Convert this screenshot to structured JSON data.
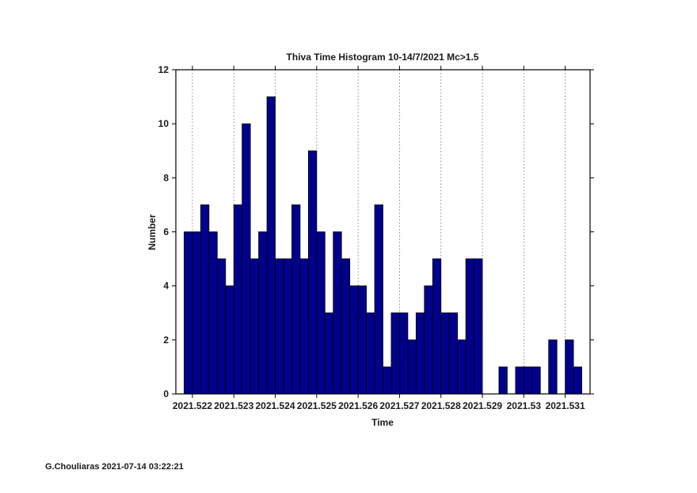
{
  "page": {
    "background": "#ffffff"
  },
  "footer": {
    "credit": "G.Chouliaras 2021-07-14 03:22:21"
  },
  "chart_data": {
    "type": "bar",
    "subtype": "time-histogram",
    "title": "Thiva Time Histogram 10-14/7/2021 Mc>1.5",
    "xlabel": "Time",
    "ylabel": "Number",
    "bar_color": "#00008b",
    "bar_edge_color": "#000000",
    "grid": "vertical-dotted",
    "legend": "none",
    "xlim": [
      2021.5216,
      2021.5316
    ],
    "ylim": [
      0,
      12
    ],
    "bins_start": 2021.5218,
    "bin_width": 0.0002,
    "counts": [
      6,
      6,
      7,
      6,
      5,
      4,
      7,
      10,
      5,
      6,
      11,
      5,
      5,
      7,
      5,
      9,
      6,
      3,
      6,
      5,
      4,
      4,
      3,
      7,
      1,
      3,
      3,
      2,
      3,
      4,
      5,
      3,
      3,
      2,
      5,
      5,
      0,
      0,
      1,
      0,
      1,
      1,
      1,
      0,
      2,
      0,
      2,
      1
    ],
    "x_ticks": [
      {
        "value": 2021.522,
        "label": "2021.522"
      },
      {
        "value": 2021.523,
        "label": "2021.523"
      },
      {
        "value": 2021.524,
        "label": "2021.524"
      },
      {
        "value": 2021.525,
        "label": "2021.525"
      },
      {
        "value": 2021.526,
        "label": "2021.526"
      },
      {
        "value": 2021.527,
        "label": "2021.527"
      },
      {
        "value": 2021.528,
        "label": "2021.528"
      },
      {
        "value": 2021.529,
        "label": "2021.529"
      },
      {
        "value": 2021.53,
        "label": "2021.53"
      },
      {
        "value": 2021.531,
        "label": "2021.531"
      }
    ],
    "y_ticks": [
      {
        "value": 0,
        "label": "0"
      },
      {
        "value": 2,
        "label": "2"
      },
      {
        "value": 4,
        "label": "4"
      },
      {
        "value": 6,
        "label": "6"
      },
      {
        "value": 8,
        "label": "8"
      },
      {
        "value": 10,
        "label": "10"
      },
      {
        "value": 12,
        "label": "12"
      }
    ]
  }
}
